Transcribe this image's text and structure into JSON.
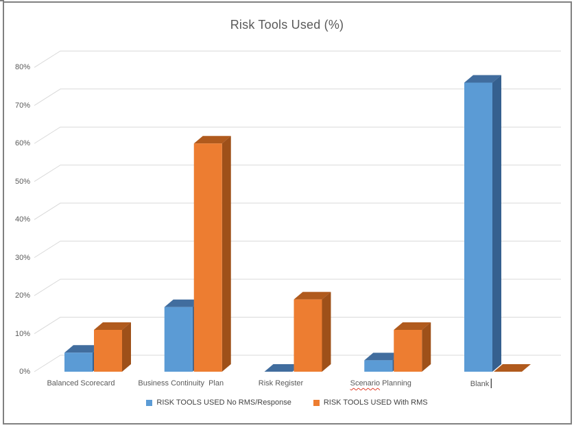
{
  "window": {
    "border_color": "#808080",
    "background": "#ffffff"
  },
  "chart_data": {
    "type": "bar",
    "style": "3d-clustered-column",
    "title": "Risk Tools Used (%)",
    "categories": [
      "Balanced Scorecard",
      "Business Continuity  Plan",
      "Risk Register",
      "Scenario Planning",
      "Blank"
    ],
    "series": [
      {
        "name": "RISK TOOLS USED No RMS/Response",
        "color": "#5b9bd5",
        "top_color": "#416d9e",
        "side_color": "#35608f",
        "values": [
          5,
          17,
          0,
          3,
          76
        ]
      },
      {
        "name": "RISK TOOLS USED With RMS",
        "color": "#ed7d31",
        "top_color": "#b05a1d",
        "side_color": "#9e5019",
        "values": [
          11,
          60,
          19,
          11,
          0
        ]
      }
    ],
    "xlabel": "",
    "ylabel": "",
    "ylim": [
      0,
      80
    ],
    "ytick_step": 10,
    "yticks": [
      "0%",
      "10%",
      "20%",
      "30%",
      "40%",
      "50%",
      "60%",
      "70%",
      "80%"
    ],
    "grid": true,
    "gridline_color": "#d9d9d9",
    "legend_position": "bottom",
    "text_color": "#595959"
  },
  "annotations": {
    "misspelled_word": "Scenario",
    "text_cursor_after_category": "Blank"
  }
}
